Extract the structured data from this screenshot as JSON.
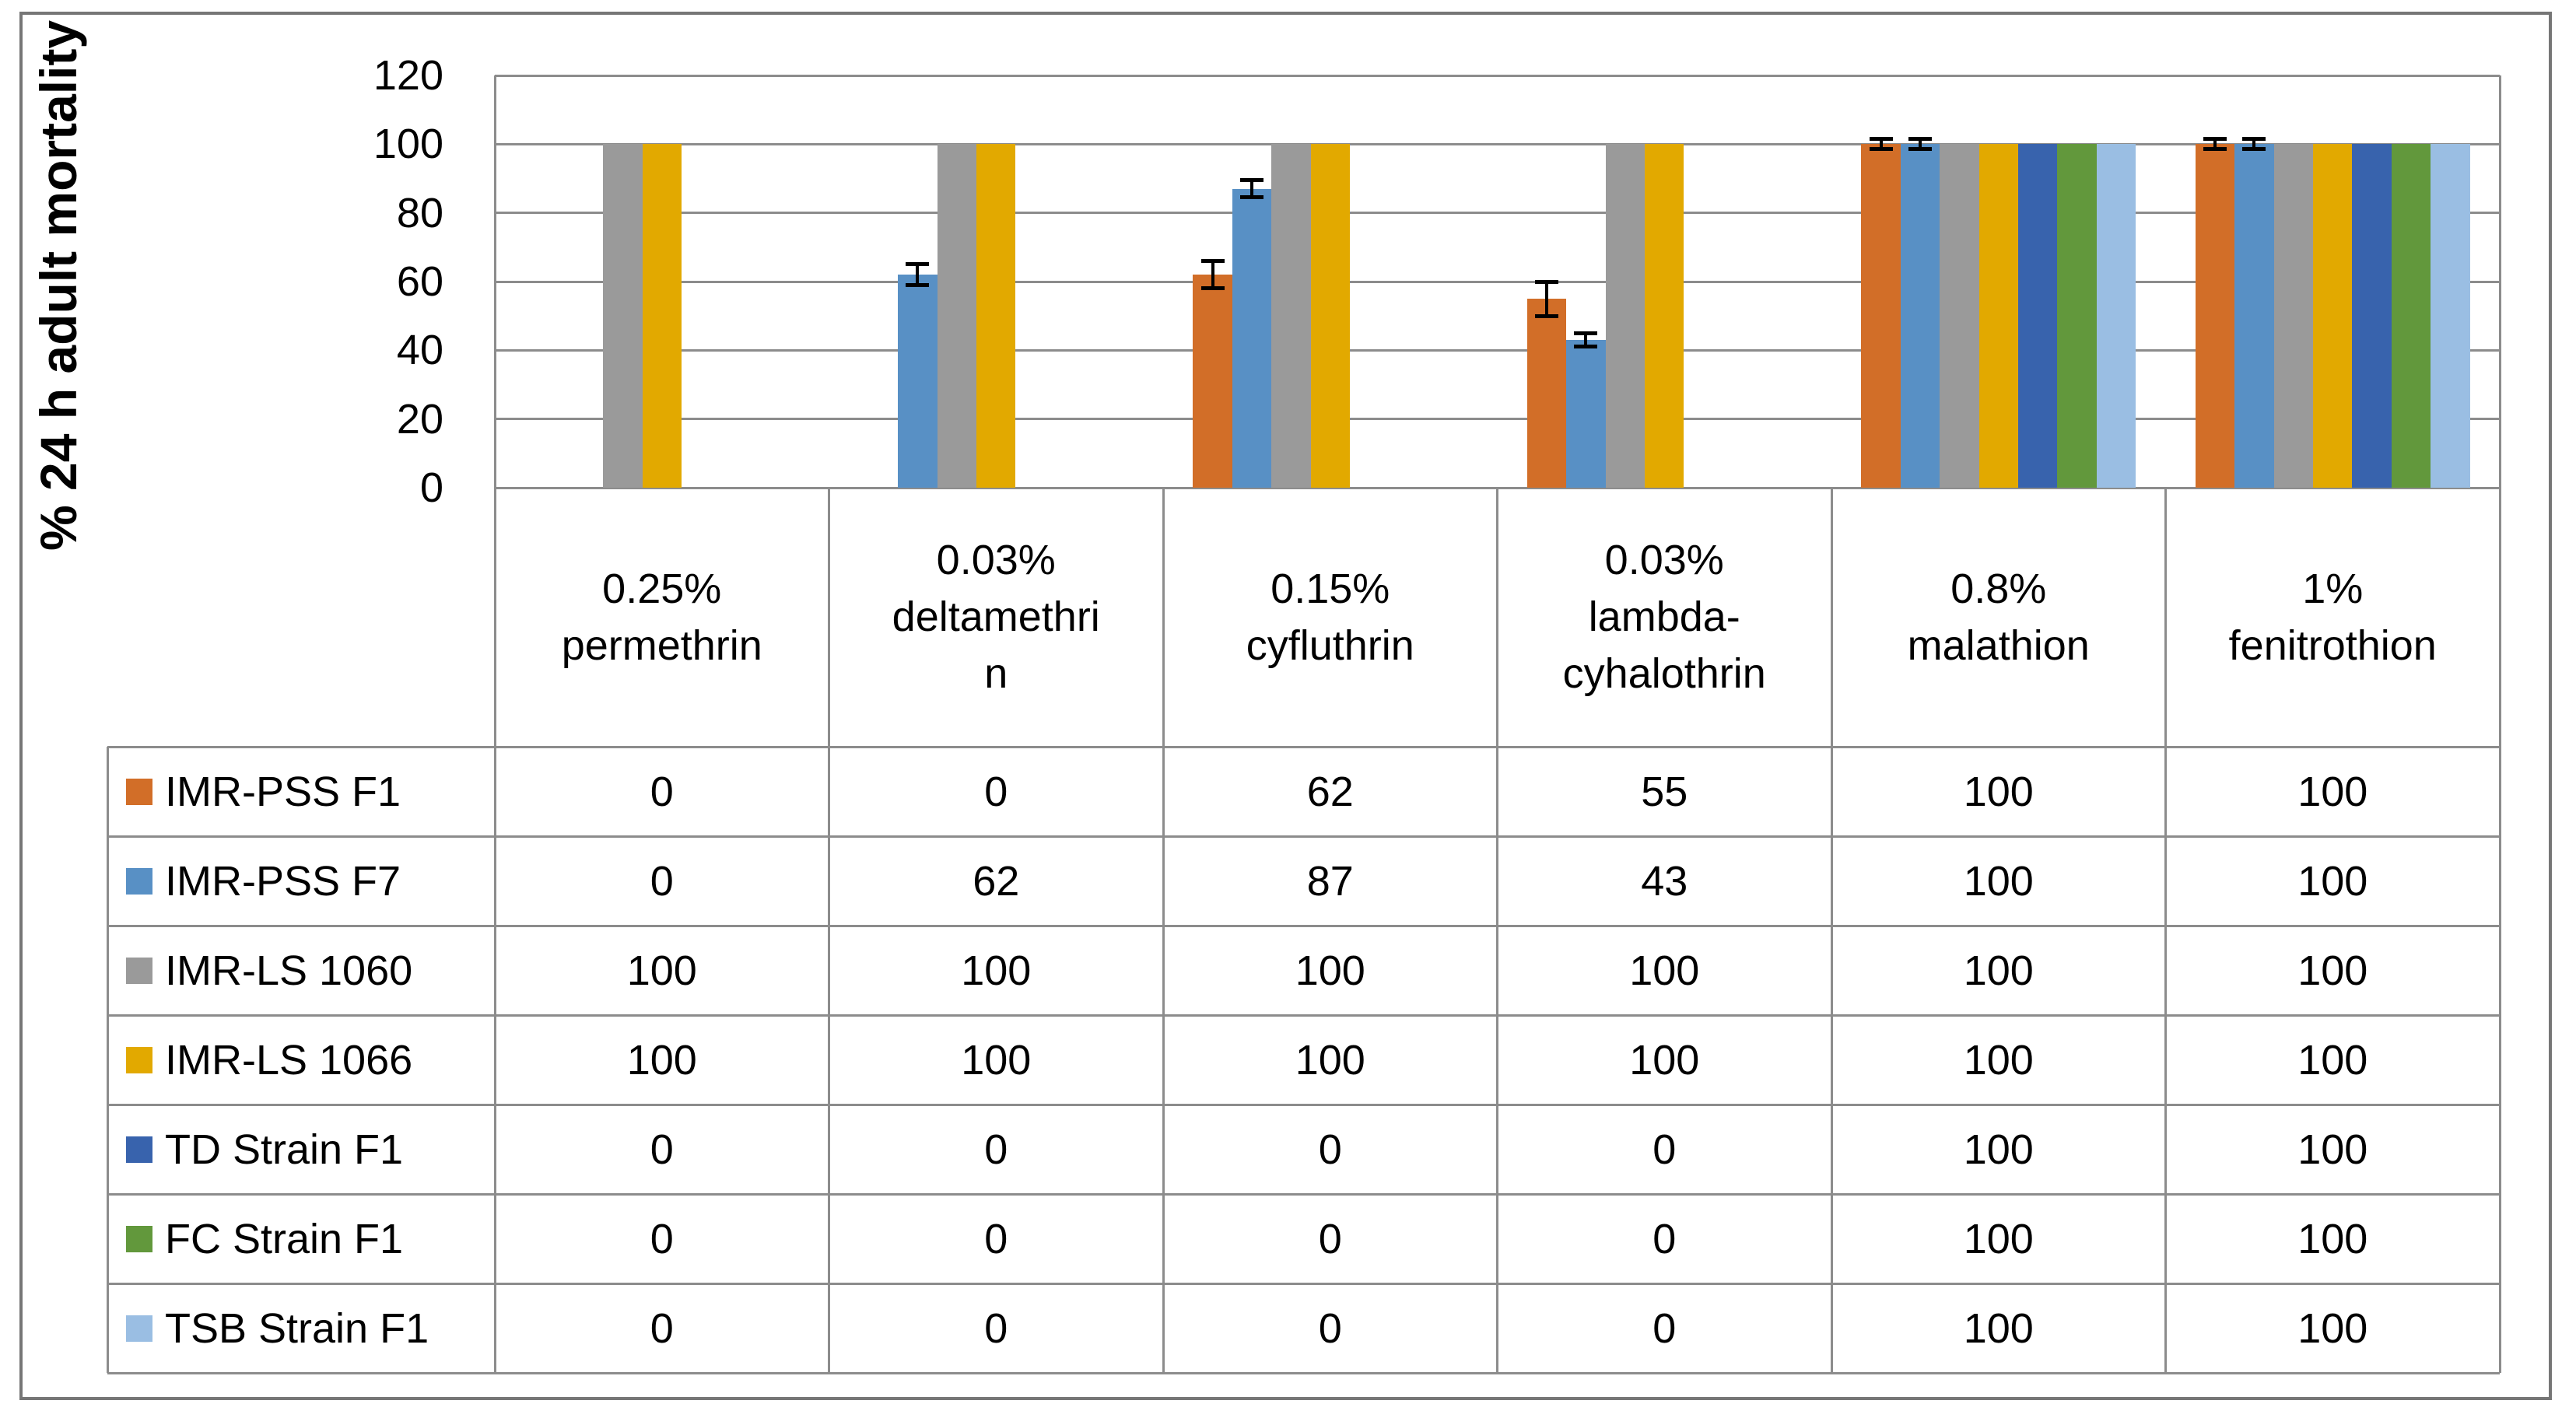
{
  "figure": {
    "background": "#ffffff",
    "frame_color": "#767676",
    "grid_color": "#8c8c8c",
    "text_color": "#000000",
    "error_bar_color": "#000000"
  },
  "chart_data": {
    "type": "bar",
    "title": "",
    "xlabel": "",
    "ylabel": "% 24 h adult mortality",
    "ylim": [
      0,
      120
    ],
    "ytick_step": 20,
    "yticks": [
      "0",
      "20",
      "40",
      "60",
      "80",
      "100",
      "120"
    ],
    "grid": true,
    "legend_position": "data-table-left-keys",
    "categories": [
      {
        "label": "0.25% permethrin",
        "lines": [
          "0.25%",
          "permethrin"
        ]
      },
      {
        "label": "0.03% deltamethrin",
        "lines": [
          "0.03%",
          "deltamethri",
          "n"
        ]
      },
      {
        "label": "0.15% cyfluthrin",
        "lines": [
          "0.15%",
          "cyfluthrin"
        ]
      },
      {
        "label": "0.03% lambda-cyhalothrin",
        "lines": [
          "0.03%",
          "lambda-",
          "cyhalothrin"
        ]
      },
      {
        "label": "0.8% malathion",
        "lines": [
          "0.8%",
          "malathion"
        ]
      },
      {
        "label": "1% fenitrothion",
        "lines": [
          "1%",
          "fenitrothion"
        ]
      }
    ],
    "series": [
      {
        "name": "IMR-PSS F1",
        "color": "#d26e28",
        "values": [
          0,
          0,
          62,
          55,
          100,
          100
        ],
        "error_bars": [
          0,
          0,
          4,
          5,
          1.5,
          1.5
        ]
      },
      {
        "name": "IMR-PSS F7",
        "color": "#5890c5",
        "values": [
          0,
          62,
          87,
          43,
          100,
          100
        ],
        "error_bars": [
          0,
          3,
          2.5,
          2,
          1.5,
          1.5
        ]
      },
      {
        "name": "IMR-LS 1060",
        "color": "#9a9a9a",
        "values": [
          100,
          100,
          100,
          100,
          100,
          100
        ],
        "error_bars": [
          0,
          0,
          0,
          0,
          0,
          0
        ]
      },
      {
        "name": "IMR-LS 1066",
        "color": "#e2a900",
        "values": [
          100,
          100,
          100,
          100,
          100,
          100
        ],
        "error_bars": [
          0,
          0,
          0,
          0,
          0,
          0
        ]
      },
      {
        "name": "TD Strain F1",
        "color": "#3863ad",
        "values": [
          0,
          0,
          0,
          0,
          100,
          100
        ],
        "error_bars": [
          0,
          0,
          0,
          0,
          0,
          0
        ]
      },
      {
        "name": "FC Strain F1",
        "color": "#62983c",
        "values": [
          0,
          0,
          0,
          0,
          100,
          100
        ],
        "error_bars": [
          0,
          0,
          0,
          0,
          0,
          0
        ]
      },
      {
        "name": "TSB Strain F1",
        "color": "#9abee3",
        "values": [
          0,
          0,
          0,
          0,
          100,
          100
        ],
        "error_bars": [
          0,
          0,
          0,
          0,
          0,
          0
        ]
      }
    ]
  }
}
